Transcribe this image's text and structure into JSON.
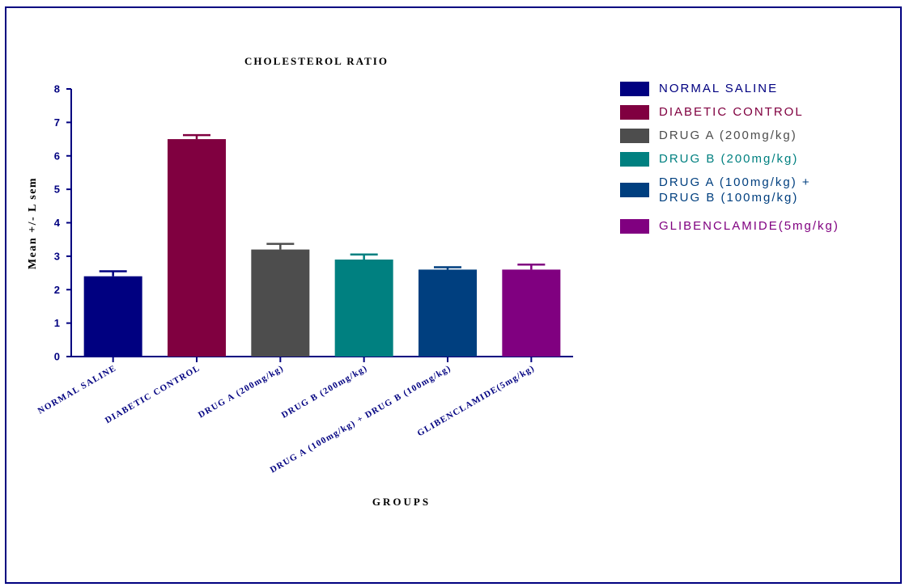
{
  "chart_data": {
    "type": "bar",
    "title": "CHOLESTEROL RATIO",
    "xlabel": "GROUPS",
    "ylabel": "Mean +/- L sem",
    "ylim": [
      0,
      8
    ],
    "yticks": [
      0,
      1,
      2,
      3,
      4,
      5,
      6,
      7,
      8
    ],
    "grid": false,
    "legend_position": "right",
    "categories": [
      "NORMAL SALINE",
      "DIABETIC CONTROL",
      "DRUG A (200mg/kg)",
      "DRUG B (200mg/kg)",
      "DRUG A (100mg/kg) + DRUG B (100mg/kg)",
      "GLIBENCLAMIDE(5mg/kg)"
    ],
    "values": [
      2.4,
      6.5,
      3.2,
      2.9,
      2.6,
      2.6
    ],
    "errors": [
      0.15,
      0.12,
      0.17,
      0.15,
      0.07,
      0.15
    ],
    "colors": [
      "#000080",
      "#800040",
      "#4d4d4d",
      "#008080",
      "#003f7f",
      "#800080"
    ],
    "legend": [
      {
        "label": "NORMAL SALINE",
        "color": "#000080"
      },
      {
        "label": "DIABETIC CONTROL",
        "color": "#800040"
      },
      {
        "label": "DRUG A (200mg/kg)",
        "color": "#4d4d4d"
      },
      {
        "label": "DRUG B (200mg/kg)",
        "color": "#008080"
      },
      {
        "label": "DRUG A (100mg/kg) +\nDRUG B (100mg/kg)",
        "color": "#003f7f"
      },
      {
        "label": "GLIBENCLAMIDE(5mg/kg)",
        "color": "#800080"
      }
    ]
  }
}
